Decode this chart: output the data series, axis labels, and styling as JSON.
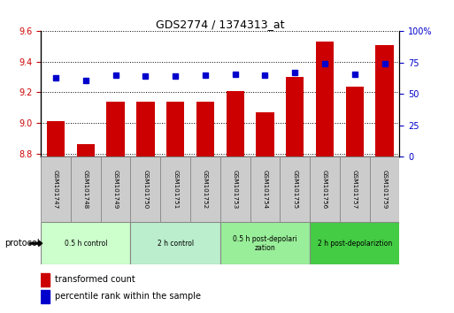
{
  "title": "GDS2774 / 1374313_at",
  "samples": [
    "GSM101747",
    "GSM101748",
    "GSM101749",
    "GSM101750",
    "GSM101751",
    "GSM101752",
    "GSM101753",
    "GSM101754",
    "GSM101755",
    "GSM101756",
    "GSM101757",
    "GSM101759"
  ],
  "red_values": [
    9.01,
    8.86,
    9.14,
    9.14,
    9.14,
    9.14,
    9.21,
    9.07,
    9.3,
    9.53,
    9.24,
    9.51
  ],
  "blue_values": [
    63,
    61,
    65,
    64,
    64,
    65,
    66,
    65,
    67,
    74,
    66,
    74
  ],
  "ylim_left": [
    8.78,
    9.6
  ],
  "ylim_right": [
    0,
    100
  ],
  "yticks_left": [
    8.8,
    9.0,
    9.2,
    9.4,
    9.6
  ],
  "yticks_right": [
    0,
    25,
    50,
    75,
    100
  ],
  "ytick_labels_right": [
    "0",
    "25",
    "50",
    "75",
    "100%"
  ],
  "groups": [
    {
      "label": "0.5 h control",
      "start": 0,
      "end": 3,
      "color": "#ccffcc",
      "label2": null
    },
    {
      "label": "2 h control",
      "start": 3,
      "end": 6,
      "color": "#bbeecc",
      "label2": null
    },
    {
      "label": "0.5 h post-depolari\nzation",
      "start": 6,
      "end": 9,
      "color": "#99ee99",
      "label2": null
    },
    {
      "label": "2 h post-depolariztion",
      "start": 9,
      "end": 12,
      "color": "#44cc44",
      "label2": null
    }
  ],
  "bar_color": "#cc0000",
  "dot_color": "#0000cc",
  "bar_width": 0.6,
  "legend_items": [
    {
      "label": "transformed count",
      "color": "#cc0000"
    },
    {
      "label": "percentile rank within the sample",
      "color": "#0000cc"
    }
  ],
  "protocol_label": "protocol",
  "sample_cell_color": "#cccccc",
  "cell_edge_color": "#888888"
}
